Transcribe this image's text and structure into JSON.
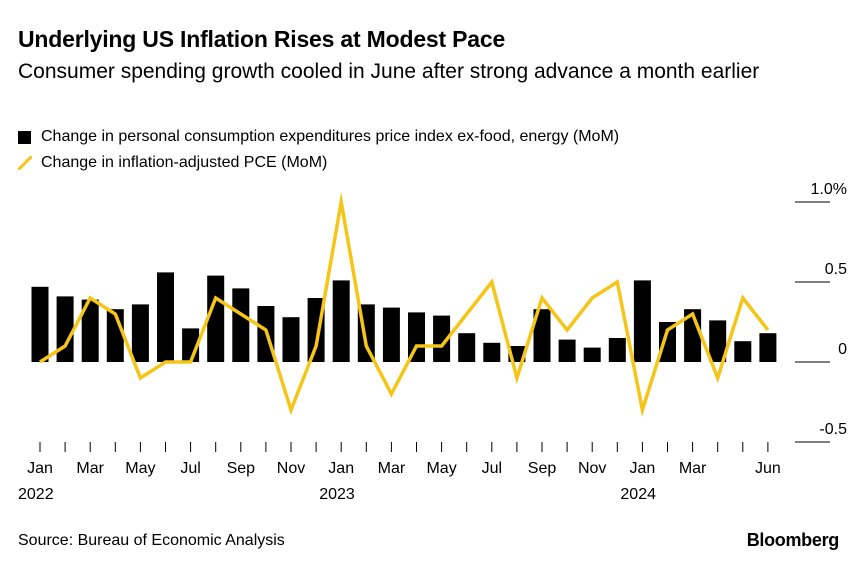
{
  "header": {
    "title": "Underlying US Inflation Rises at Modest Pace",
    "subtitle": "Consumer spending growth cooled in June after strong advance a month earlier"
  },
  "legend": {
    "bar_label": "Change in personal consumption expenditures price index ex-food, energy (MoM)",
    "line_label": "Change in inflation-adjusted PCE (MoM)"
  },
  "footer": {
    "source": "Source: Bureau of Economic Analysis",
    "brand": "Bloomberg"
  },
  "colors": {
    "bar": "#000000",
    "line": "#f5c518",
    "axis": "#000000"
  },
  "chart_data": {
    "type": "bar",
    "x": [
      "2022-01",
      "2022-02",
      "2022-03",
      "2022-04",
      "2022-05",
      "2022-06",
      "2022-07",
      "2022-08",
      "2022-09",
      "2022-10",
      "2022-11",
      "2022-12",
      "2023-01",
      "2023-02",
      "2023-03",
      "2023-04",
      "2023-05",
      "2023-06",
      "2023-07",
      "2023-08",
      "2023-09",
      "2023-10",
      "2023-11",
      "2023-12",
      "2024-01",
      "2024-02",
      "2024-03",
      "2024-04",
      "2024-05",
      "2024-06"
    ],
    "series": [
      {
        "type": "bar",
        "values": [
          0.47,
          0.41,
          0.39,
          0.33,
          0.36,
          0.56,
          0.21,
          0.54,
          0.46,
          0.35,
          0.28,
          0.4,
          0.51,
          0.36,
          0.34,
          0.31,
          0.29,
          0.18,
          0.12,
          0.1,
          0.33,
          0.14,
          0.09,
          0.15,
          0.51,
          0.25,
          0.33,
          0.26,
          0.13,
          0.18
        ]
      },
      {
        "type": "line",
        "values": [
          0.0,
          0.1,
          0.4,
          0.3,
          -0.1,
          0.0,
          0.0,
          0.4,
          0.3,
          0.2,
          -0.3,
          0.1,
          1.0,
          0.1,
          -0.2,
          0.1,
          0.1,
          0.3,
          0.5,
          -0.1,
          0.4,
          0.2,
          0.4,
          0.5,
          -0.3,
          0.2,
          0.3,
          -0.1,
          0.4,
          0.2
        ]
      }
    ],
    "y_ticks": [
      {
        "value": 1.0,
        "label": "1.0%"
      },
      {
        "value": 0.5,
        "label": "0.5"
      },
      {
        "value": 0,
        "label": "0"
      },
      {
        "value": -0.5,
        "label": "-0.5"
      }
    ],
    "ylim": [
      -0.5,
      1.0
    ],
    "x_tick_labels": [
      {
        "index": 0,
        "label": "Jan"
      },
      {
        "index": 2,
        "label": "Mar"
      },
      {
        "index": 4,
        "label": "May"
      },
      {
        "index": 6,
        "label": "Jul"
      },
      {
        "index": 8,
        "label": "Sep"
      },
      {
        "index": 10,
        "label": "Nov"
      },
      {
        "index": 12,
        "label": "Jan"
      },
      {
        "index": 14,
        "label": "Mar"
      },
      {
        "index": 16,
        "label": "May"
      },
      {
        "index": 18,
        "label": "Jul"
      },
      {
        "index": 20,
        "label": "Sep"
      },
      {
        "index": 22,
        "label": "Nov"
      },
      {
        "index": 24,
        "label": "Jan"
      },
      {
        "index": 26,
        "label": "Mar"
      },
      {
        "index": 29,
        "label": "Jun"
      }
    ],
    "year_labels": [
      {
        "index": 0,
        "label": "2022"
      },
      {
        "index": 12,
        "label": "2023"
      },
      {
        "index": 24,
        "label": "2024"
      }
    ],
    "grid": false,
    "legend_position": "top-left"
  }
}
